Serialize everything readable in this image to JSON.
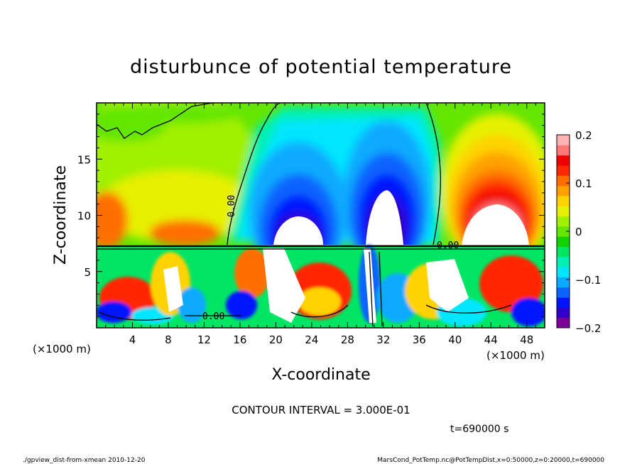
{
  "chart_data": {
    "type": "heatmap",
    "title": "disturbunce of potential temperature",
    "xlabel": "X-coordinate",
    "ylabel": "Z-coordinate",
    "x_unit_left": "(×1000 m)",
    "x_unit_right": "(×1000 m)",
    "xlim": [
      0,
      50
    ],
    "ylim": [
      0,
      20
    ],
    "x_ticks": [
      4,
      8,
      12,
      16,
      20,
      24,
      28,
      32,
      36,
      40,
      44,
      48
    ],
    "y_ticks": [
      5,
      10,
      15
    ],
    "colorbar": {
      "range": [
        -0.2,
        0.2
      ],
      "tick_labels": [
        "0.2",
        "0.1",
        "0",
        "−0.1",
        "−0.2"
      ],
      "tick_values": [
        0.2,
        0.1,
        0,
        -0.1,
        -0.2
      ],
      "colors": [
        "#7a0099",
        "#3200c8",
        "#0014ff",
        "#0a64ff",
        "#0aaaff",
        "#00e6ff",
        "#00f0b4",
        "#00e664",
        "#14d200",
        "#64e600",
        "#a0f000",
        "#e6f000",
        "#ffd200",
        "#ffa000",
        "#ff6e00",
        "#ff2800",
        "#f00000",
        "#ff7878",
        "#ffb4b4"
      ]
    },
    "contour_label": "0.00",
    "contour_interval": "CONTOUR INTERVAL = 3.000E-01",
    "time": "t=690000 s",
    "features": [
      {
        "x": 22,
        "z": 10,
        "value": -0.2
      },
      {
        "x": 31.5,
        "z": 11,
        "value": -0.2
      },
      {
        "x": 42,
        "z": 11,
        "value": 0.2
      },
      {
        "x": 3,
        "z": 9,
        "value": 0.1
      }
    ]
  },
  "footer": {
    "left": "./gpview_dist-from-xmean  2010-12-20",
    "right": "MarsCond_PotTemp.nc@PotTempDist,x=0:50000,z=0:20000,t=690000"
  }
}
